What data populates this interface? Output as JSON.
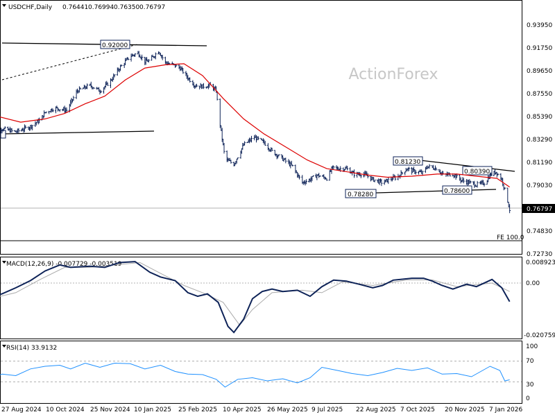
{
  "chart_data": [
    {
      "type": "candlestick",
      "header": {
        "symbol_label": "USDCHF,Daily",
        "open": "0.76441",
        "high": "0.76994",
        "low": "0.76350",
        "close": "0.76797"
      },
      "watermark": "ActionForex",
      "price_axis_labels": [
        "0.93950",
        "0.91750",
        "0.89650",
        "0.87550",
        "0.85390",
        "0.83290",
        "0.81190",
        "0.79030",
        "0.76797",
        "0.74830",
        "0.72730"
      ],
      "current_price": 0.76797,
      "annotations": [
        "0.92000",
        "0.81230",
        "0.80390",
        "0.78600",
        "0.78280",
        "FE 100.0"
      ],
      "x_labels": [
        "27 Aug 2024",
        "10 Oct 2024",
        "25 Nov 2024",
        "10 Jan 2025",
        "25 Feb 2025",
        "10 Apr 2025",
        "26 May 2025",
        "9 Jul 2025",
        "22 Aug 2025",
        "7 Oct 2025",
        "20 Nov 2025",
        "7 Jan 2026"
      ],
      "trendlines": [
        {
          "from": [
            "2024-08-15",
            0.8885
          ],
          "to": [
            "2025-01-10",
            0.92
          ],
          "style": "dashed"
        },
        {
          "from": [
            "2024-08-15",
            0.9225
          ],
          "to": [
            "2025-03-25",
            0.9185
          ],
          "style": "solid"
        },
        {
          "from": [
            "2024-08-15",
            0.8365
          ],
          "to": [
            "2025-01-05",
            0.839
          ],
          "style": "solid"
        },
        {
          "from": [
            "2025-09-05",
            0.8135
          ],
          "to": [
            "2026-01-20",
            0.803
          ],
          "style": "solid"
        },
        {
          "from": [
            "2025-08-10",
            0.7855
          ],
          "to": [
            "2026-01-15",
            0.788
          ],
          "style": "solid"
        }
      ],
      "moving_average": {
        "color": "#dd0000"
      },
      "ohlc_color": "#0d2257",
      "price_points": [
        [
          "2024-08-15",
          0.838
        ],
        [
          "2024-08-27",
          0.843
        ],
        [
          "2024-09-10",
          0.84
        ],
        [
          "2024-09-25",
          0.845
        ],
        [
          "2024-10-05",
          0.851
        ],
        [
          "2024-10-10",
          0.858
        ],
        [
          "2024-10-20",
          0.862
        ],
        [
          "2024-11-01",
          0.86
        ],
        [
          "2024-11-12",
          0.878
        ],
        [
          "2024-11-25",
          0.883
        ],
        [
          "2024-12-05",
          0.878
        ],
        [
          "2024-12-15",
          0.886
        ],
        [
          "2024-12-25",
          0.899
        ],
        [
          "2025-01-05",
          0.91
        ],
        [
          "2025-01-13",
          0.913
        ],
        [
          "2025-01-20",
          0.905
        ],
        [
          "2025-01-25",
          0.906
        ],
        [
          "2025-02-03",
          0.915
        ],
        [
          "2025-02-10",
          0.904
        ],
        [
          "2025-02-18",
          0.902
        ],
        [
          "2025-02-25",
          0.899
        ],
        [
          "2025-03-05",
          0.89
        ],
        [
          "2025-03-12",
          0.883
        ],
        [
          "2025-03-20",
          0.882
        ],
        [
          "2025-03-28",
          0.883
        ],
        [
          "2025-04-03",
          0.878
        ],
        [
          "2025-04-05",
          0.86
        ],
        [
          "2025-04-08",
          0.84
        ],
        [
          "2025-04-12",
          0.815
        ],
        [
          "2025-04-21",
          0.81
        ],
        [
          "2025-05-01",
          0.828
        ],
        [
          "2025-05-12",
          0.835
        ],
        [
          "2025-05-22",
          0.83
        ],
        [
          "2025-05-30",
          0.822
        ],
        [
          "2025-06-10",
          0.815
        ],
        [
          "2025-06-20",
          0.808
        ],
        [
          "2025-06-30",
          0.793
        ],
        [
          "2025-07-08",
          0.796
        ],
        [
          "2025-07-15",
          0.8
        ],
        [
          "2025-07-25",
          0.797
        ],
        [
          "2025-07-31",
          0.807
        ],
        [
          "2025-08-05",
          0.806
        ],
        [
          "2025-08-14",
          0.806
        ],
        [
          "2025-08-22",
          0.801
        ],
        [
          "2025-09-01",
          0.801
        ],
        [
          "2025-09-10",
          0.796
        ],
        [
          "2025-09-20",
          0.793
        ],
        [
          "2025-09-30",
          0.797
        ],
        [
          "2025-10-05",
          0.798
        ],
        [
          "2025-10-15",
          0.806
        ],
        [
          "2025-10-20",
          0.804
        ],
        [
          "2025-10-31",
          0.802
        ],
        [
          "2025-11-05",
          0.808
        ],
        [
          "2025-11-15",
          0.806
        ],
        [
          "2025-11-21",
          0.8
        ],
        [
          "2025-12-01",
          0.801
        ],
        [
          "2025-12-10",
          0.795
        ],
        [
          "2025-12-18",
          0.793
        ],
        [
          "2025-12-25",
          0.791
        ],
        [
          "2026-01-03",
          0.793
        ],
        [
          "2026-01-08",
          0.8
        ],
        [
          "2026-01-14",
          0.803
        ],
        [
          "2026-01-20",
          0.796
        ],
        [
          "2026-01-25",
          0.78
        ],
        [
          "2026-01-28",
          0.768
        ]
      ],
      "ma_points": [
        [
          "2024-08-15",
          0.856
        ],
        [
          "2024-09-15",
          0.849
        ],
        [
          "2024-10-10",
          0.852
        ],
        [
          "2024-10-30",
          0.857
        ],
        [
          "2024-11-20",
          0.866
        ],
        [
          "2024-12-10",
          0.873
        ],
        [
          "2024-12-31",
          0.888
        ],
        [
          "2025-01-20",
          0.899
        ],
        [
          "2025-02-10",
          0.902
        ],
        [
          "2025-03-01",
          0.903
        ],
        [
          "2025-03-20",
          0.892
        ],
        [
          "2025-04-10",
          0.871
        ],
        [
          "2025-05-01",
          0.852
        ],
        [
          "2025-05-22",
          0.838
        ],
        [
          "2025-06-15",
          0.825
        ],
        [
          "2025-07-05",
          0.814
        ],
        [
          "2025-07-25",
          0.806
        ],
        [
          "2025-08-15",
          0.803
        ],
        [
          "2025-09-05",
          0.8
        ],
        [
          "2025-09-25",
          0.798
        ],
        [
          "2025-10-20",
          0.799
        ],
        [
          "2025-11-15",
          0.801
        ],
        [
          "2025-12-05",
          0.801
        ],
        [
          "2025-12-25",
          0.799
        ],
        [
          "2026-01-15",
          0.797
        ],
        [
          "2026-01-28",
          0.789
        ]
      ]
    },
    {
      "type": "line",
      "label": "MACD(12,26,9) -0.007729 -0.003519",
      "y_axis_labels": [
        "0.008923",
        "0.00",
        "-0.020759"
      ],
      "macd_color": "#0d2257",
      "signal_color": "#aaaaaa",
      "macd_points": [
        [
          "2024-08-15",
          -0.0058
        ],
        [
          "2024-08-27",
          -0.0045
        ],
        [
          "2024-09-10",
          -0.002
        ],
        [
          "2024-09-25",
          0.001
        ],
        [
          "2024-10-10",
          0.005
        ],
        [
          "2024-10-25",
          0.0075
        ],
        [
          "2024-11-05",
          0.0065
        ],
        [
          "2024-11-25",
          0.007
        ],
        [
          "2024-12-10",
          0.0065
        ],
        [
          "2024-12-25",
          0.0085
        ],
        [
          "2025-01-10",
          0.0089
        ],
        [
          "2025-01-25",
          0.0045
        ],
        [
          "2025-02-05",
          0.0025
        ],
        [
          "2025-02-20",
          0.001
        ],
        [
          "2025-03-05",
          -0.004
        ],
        [
          "2025-03-15",
          -0.0055
        ],
        [
          "2025-03-25",
          -0.0045
        ],
        [
          "2025-04-05",
          -0.008
        ],
        [
          "2025-04-15",
          -0.018
        ],
        [
          "2025-04-21",
          -0.0205
        ],
        [
          "2025-05-01",
          -0.015
        ],
        [
          "2025-05-10",
          -0.0065
        ],
        [
          "2025-05-20",
          -0.0035
        ],
        [
          "2025-05-30",
          -0.0025
        ],
        [
          "2025-06-10",
          -0.0035
        ],
        [
          "2025-06-25",
          -0.003
        ],
        [
          "2025-07-08",
          -0.0055
        ],
        [
          "2025-07-20",
          -0.0015
        ],
        [
          "2025-08-01",
          0.0012
        ],
        [
          "2025-08-14",
          0.0008
        ],
        [
          "2025-08-27",
          -0.0005
        ],
        [
          "2025-09-10",
          -0.002
        ],
        [
          "2025-09-20",
          -0.001
        ],
        [
          "2025-10-01",
          0.0012
        ],
        [
          "2025-10-20",
          0.002
        ],
        [
          "2025-11-01",
          0.002
        ],
        [
          "2025-11-10",
          0.0008
        ],
        [
          "2025-11-20",
          -0.001
        ],
        [
          "2025-12-01",
          -0.0025
        ],
        [
          "2025-12-15",
          -0.0005
        ],
        [
          "2025-12-25",
          -0.0015
        ],
        [
          "2026-01-10",
          0.0015
        ],
        [
          "2026-01-20",
          -0.002
        ],
        [
          "2026-01-28",
          -0.0077
        ]
      ],
      "signal_points": [
        [
          "2024-08-15",
          -0.0065
        ],
        [
          "2024-09-10",
          -0.004
        ],
        [
          "2024-10-05",
          0.0015
        ],
        [
          "2024-10-30",
          0.0065
        ],
        [
          "2024-11-25",
          0.0065
        ],
        [
          "2024-12-20",
          0.0075
        ],
        [
          "2025-01-15",
          0.0085
        ],
        [
          "2025-02-05",
          0.004
        ],
        [
          "2025-03-01",
          -0.001
        ],
        [
          "2025-03-20",
          -0.004
        ],
        [
          "2025-04-10",
          -0.008
        ],
        [
          "2025-04-27",
          -0.0175
        ],
        [
          "2025-05-10",
          -0.011
        ],
        [
          "2025-05-30",
          -0.004
        ],
        [
          "2025-06-30",
          -0.003
        ],
        [
          "2025-07-20",
          -0.004
        ],
        [
          "2025-08-10",
          0.0005
        ],
        [
          "2025-09-10",
          -0.001
        ],
        [
          "2025-10-15",
          0.0013
        ],
        [
          "2025-11-10",
          0.0013
        ],
        [
          "2025-12-05",
          -0.0015
        ],
        [
          "2026-01-10",
          0
        ],
        [
          "2026-01-28",
          -0.0035
        ]
      ]
    },
    {
      "type": "line",
      "label": "RSI(14) 33.9132",
      "y_axis_labels": [
        "100",
        "70",
        "30",
        "0"
      ],
      "ylim": [
        0,
        100
      ],
      "levels": [
        70,
        30
      ],
      "line_color": "#1e90ff",
      "rsi_points": [
        [
          "2024-08-15",
          36
        ],
        [
          "2024-08-27",
          45
        ],
        [
          "2024-09-10",
          42
        ],
        [
          "2024-09-25",
          55
        ],
        [
          "2024-10-10",
          60
        ],
        [
          "2024-10-25",
          62
        ],
        [
          "2024-11-05",
          55
        ],
        [
          "2024-11-20",
          66
        ],
        [
          "2024-12-05",
          58
        ],
        [
          "2024-12-20",
          66
        ],
        [
          "2025-01-05",
          65
        ],
        [
          "2025-01-20",
          55
        ],
        [
          "2025-02-05",
          62
        ],
        [
          "2025-02-20",
          50
        ],
        [
          "2025-03-05",
          45
        ],
        [
          "2025-03-20",
          44
        ],
        [
          "2025-04-03",
          35
        ],
        [
          "2025-04-12",
          20
        ],
        [
          "2025-04-25",
          35
        ],
        [
          "2025-05-10",
          38
        ],
        [
          "2025-05-25",
          32
        ],
        [
          "2025-06-10",
          36
        ],
        [
          "2025-06-25",
          28
        ],
        [
          "2025-07-08",
          38
        ],
        [
          "2025-07-20",
          58
        ],
        [
          "2025-08-05",
          52
        ],
        [
          "2025-08-20",
          46
        ],
        [
          "2025-09-05",
          42
        ],
        [
          "2025-09-20",
          48
        ],
        [
          "2025-10-05",
          56
        ],
        [
          "2025-10-20",
          52
        ],
        [
          "2025-11-05",
          57
        ],
        [
          "2025-11-20",
          45
        ],
        [
          "2025-12-05",
          46
        ],
        [
          "2025-12-20",
          40
        ],
        [
          "2026-01-08",
          60
        ],
        [
          "2026-01-18",
          52
        ],
        [
          "2026-01-23",
          32
        ],
        [
          "2026-01-28",
          34
        ]
      ]
    }
  ]
}
